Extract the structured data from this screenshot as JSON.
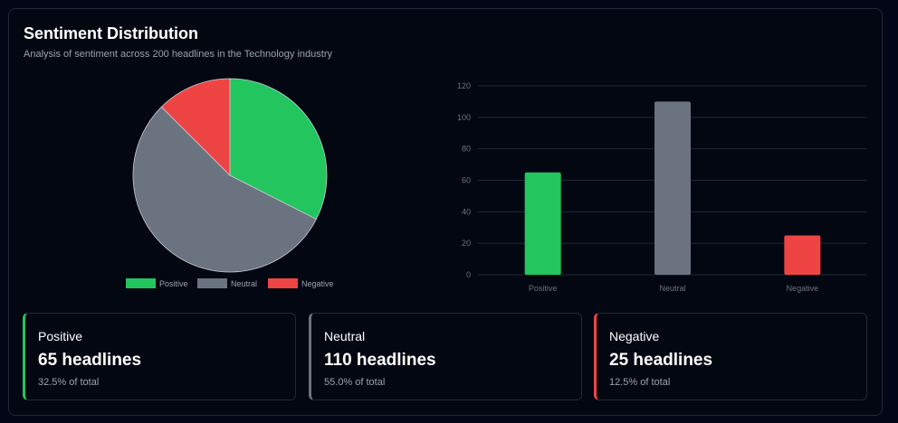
{
  "header": {
    "title": "Sentiment Distribution",
    "subtitle": "Analysis of sentiment across 200 headlines in the Technology industry"
  },
  "colors": {
    "positive": "#22c55e",
    "neutral": "#6b7280",
    "negative": "#ef4444"
  },
  "chart_data": [
    {
      "type": "pie",
      "categories": [
        "Positive",
        "Neutral",
        "Negative"
      ],
      "values": [
        65,
        110,
        25
      ],
      "colors": [
        "#22c55e",
        "#6b7280",
        "#ef4444"
      ],
      "legend": "bottom"
    },
    {
      "type": "bar",
      "categories": [
        "Positive",
        "Neutral",
        "Negative"
      ],
      "values": [
        65,
        110,
        25
      ],
      "colors": [
        "#22c55e",
        "#6b7280",
        "#ef4444"
      ],
      "ylim": [
        0,
        120
      ],
      "yticks": [
        "0",
        "20",
        "40",
        "60",
        "80",
        "100",
        "120"
      ],
      "grid": true,
      "legend": "none"
    }
  ],
  "stats": [
    {
      "label": "Positive",
      "count": "65 headlines",
      "percent": "32.5% of total",
      "color": "#22c55e"
    },
    {
      "label": "Neutral",
      "count": "110 headlines",
      "percent": "55.0% of total",
      "color": "#6b7280"
    },
    {
      "label": "Negative",
      "count": "25 headlines",
      "percent": "12.5% of total",
      "color": "#ef4444"
    }
  ]
}
